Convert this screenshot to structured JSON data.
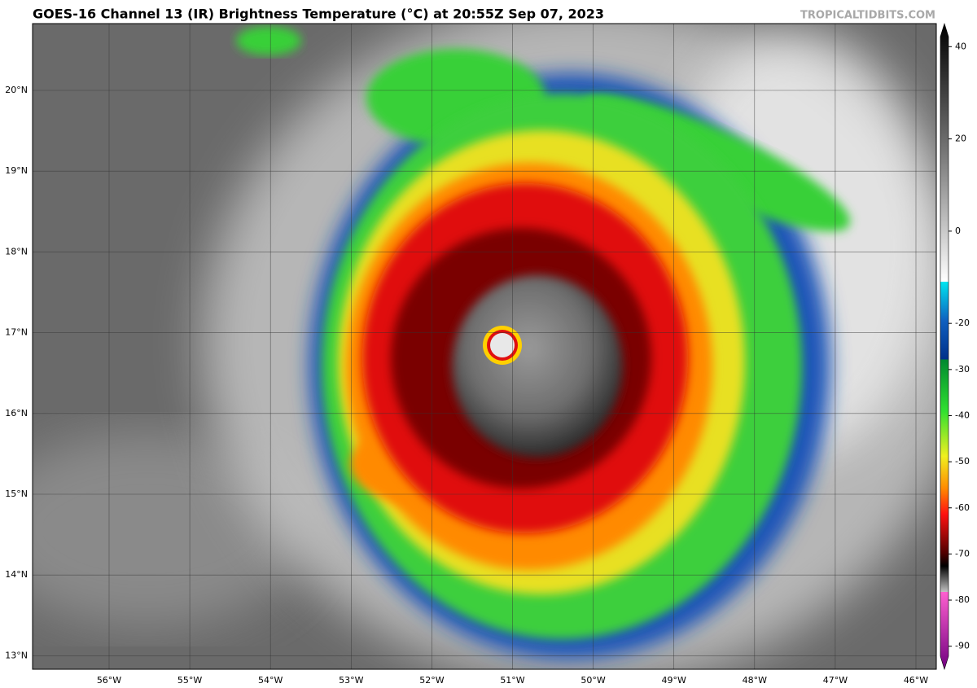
{
  "header": {
    "title": "GOES-16 Channel 13 (IR) Brightness Temperature (°C) at 20:55Z Sep 07, 2023",
    "watermark": "TROPICALTIDBITS.COM"
  },
  "map": {
    "latitude_labels": [
      "20°N",
      "19°N",
      "18°N",
      "17°N",
      "16°N",
      "15°N",
      "14°N",
      "13°N"
    ],
    "longitude_labels": [
      "56°W",
      "55°W",
      "54°W",
      "53°W",
      "52°W",
      "51°W",
      "50°W",
      "49°W",
      "48°W",
      "47°W",
      "46°W"
    ]
  },
  "colorbar": {
    "range": [
      -95,
      45
    ],
    "ticks": [
      40,
      20,
      0,
      -20,
      -30,
      -40,
      -50,
      -60,
      -70,
      -80,
      -90
    ]
  }
}
